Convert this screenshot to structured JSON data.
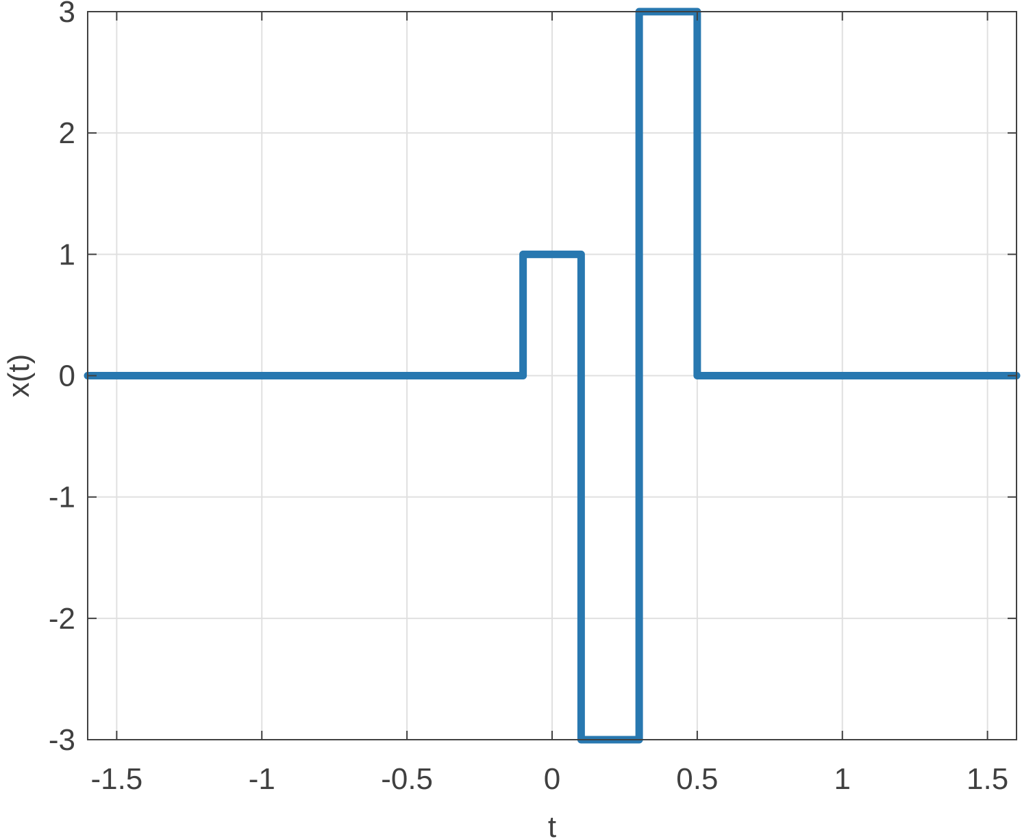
{
  "chart_data": {
    "type": "line",
    "title": "",
    "xlabel": "t",
    "ylabel": "x(t)",
    "xlim": [
      -1.6,
      1.6
    ],
    "ylim": [
      -3,
      3
    ],
    "grid": true,
    "xticks": [
      -1.5,
      -1,
      -0.5,
      0,
      0.5,
      1,
      1.5
    ],
    "xtick_labels": [
      "-1.5",
      "-1",
      "-0.5",
      "0",
      "0.5",
      "1",
      "1.5"
    ],
    "yticks": [
      -3,
      -2,
      -1,
      0,
      1,
      2,
      3
    ],
    "ytick_labels": [
      "-3",
      "-2",
      "-1",
      "0",
      "1",
      "2",
      "3"
    ],
    "series": [
      {
        "color": "#2878b0",
        "x": [
          -1.6,
          -0.1,
          -0.1,
          0.1,
          0.1,
          0.3,
          0.3,
          0.5,
          0.5,
          1.6
        ],
        "y": [
          0,
          0,
          1,
          1,
          -3,
          -3,
          3,
          3,
          0,
          0
        ]
      }
    ]
  }
}
